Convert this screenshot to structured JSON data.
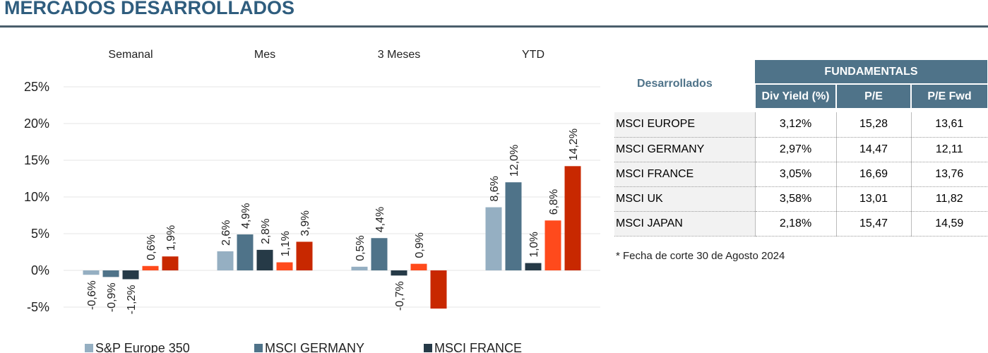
{
  "header": {
    "title": "MERCADOS DESARROLLADOS"
  },
  "chart_data": {
    "type": "bar",
    "categories": [
      "Semanal",
      "Mes",
      "3 Meses",
      "YTD"
    ],
    "series": [
      {
        "name": "S&P Europe 350",
        "color": "#95afc2",
        "values": [
          -0.6,
          2.6,
          0.5,
          8.6
        ],
        "value_labels": [
          "-0,6%",
          "2,6%",
          "0,5%",
          "8,6%"
        ]
      },
      {
        "name": "MSCI GERMANY",
        "color": "#4f7389",
        "values": [
          -0.9,
          4.9,
          4.4,
          12.0
        ],
        "value_labels": [
          "-0,9%",
          "4,9%",
          "4,4%",
          "12,0%"
        ]
      },
      {
        "name": "MSCI FRANCE",
        "color": "#263a47",
        "values": [
          -1.2,
          2.8,
          -0.7,
          1.0
        ],
        "value_labels": [
          "-1,2%",
          "2,8%",
          "-0,7%",
          "1,0%"
        ]
      },
      {
        "color": "#ff4a1c",
        "values": [
          0.6,
          1.1,
          0.9,
          6.8
        ],
        "value_labels": [
          "0,6%",
          "1,1%",
          "0,9%",
          "6,8%"
        ]
      },
      {
        "color": "#c82800",
        "values": [
          1.9,
          3.9,
          -5.2,
          14.2
        ],
        "value_labels": [
          "1,9%",
          "3,9%",
          null,
          "14,2%"
        ]
      }
    ],
    "ylim": [
      -5,
      25
    ],
    "yticks": [
      {
        "value": -5,
        "label": "-5%"
      },
      {
        "value": 0,
        "label": "0%"
      },
      {
        "value": 5,
        "label": "5%"
      },
      {
        "value": 10,
        "label": "10%"
      },
      {
        "value": 15,
        "label": "15%"
      },
      {
        "value": 20,
        "label": "20%"
      },
      {
        "value": 25,
        "label": "25%"
      }
    ],
    "grid": true
  },
  "table": {
    "corner": "Desarrollados",
    "group": "FUNDAMENTALS",
    "columns": [
      "Div Yield (%)",
      "P/E",
      "P/E Fwd"
    ],
    "rows": [
      [
        "MSCI EUROPE",
        "3,12%",
        "15,28",
        "13,61"
      ],
      [
        "MSCI GERMANY",
        "2,97%",
        "14,47",
        "12,11"
      ],
      [
        "MSCI FRANCE",
        "3,05%",
        "16,69",
        "13,76"
      ],
      [
        "MSCI UK",
        "3,58%",
        "13,01",
        "11,82"
      ],
      [
        "MSCI JAPAN",
        "2,18%",
        "15,47",
        "14,59"
      ]
    ]
  },
  "note": "* Fecha de corte 30 de Agosto 2024"
}
